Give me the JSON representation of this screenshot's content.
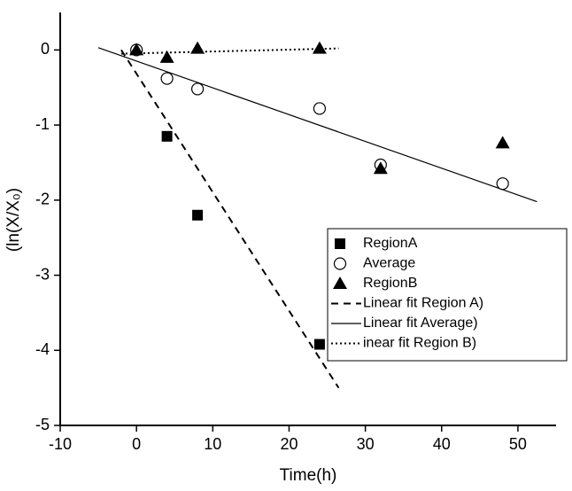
{
  "chart_data": {
    "type": "scatter",
    "xlabel": "Time(h)",
    "ylabel": "(ln(X/X₀)",
    "xlim": [
      -10,
      55
    ],
    "ylim": [
      -5,
      0.5
    ],
    "xticks": [
      -10,
      0,
      10,
      20,
      30,
      40,
      50
    ],
    "yticks": [
      -5,
      -4,
      -3,
      -2,
      -1,
      0
    ],
    "legend": "right",
    "series": [
      {
        "name": "RegionA",
        "color": "#000000",
        "marker": "square",
        "x": [
          4,
          8,
          24
        ],
        "values": [
          -1.15,
          -2.2,
          -3.92
        ]
      },
      {
        "name": "Average",
        "color": "#000000",
        "marker": "circle",
        "x": [
          0,
          4,
          8,
          24,
          32,
          48
        ],
        "values": [
          0,
          -0.38,
          -0.52,
          -0.78,
          -1.53,
          -1.78
        ]
      },
      {
        "name": "RegionB",
        "color": "#000000",
        "marker": "triangle",
        "x": [
          0,
          4,
          8,
          24,
          32,
          48
        ],
        "values": [
          0,
          -0.1,
          0.02,
          0.02,
          -1.58,
          -1.24
        ]
      },
      {
        "name": "Linear fit Region A)",
        "color": "#000000",
        "line": "dashed",
        "x": [
          -2,
          26.5
        ],
        "values": [
          0,
          -4.5
        ]
      },
      {
        "name": "Linear fit Average)",
        "color": "#000000",
        "line": "solid",
        "x": [
          -5,
          52.5
        ],
        "values": [
          0.03,
          -2.02
        ]
      },
      {
        "name": "inear fit Region B)",
        "color": "#000000",
        "line": "dotted",
        "x": [
          -2,
          26.5
        ],
        "values": [
          -0.05,
          0.02
        ]
      }
    ]
  }
}
